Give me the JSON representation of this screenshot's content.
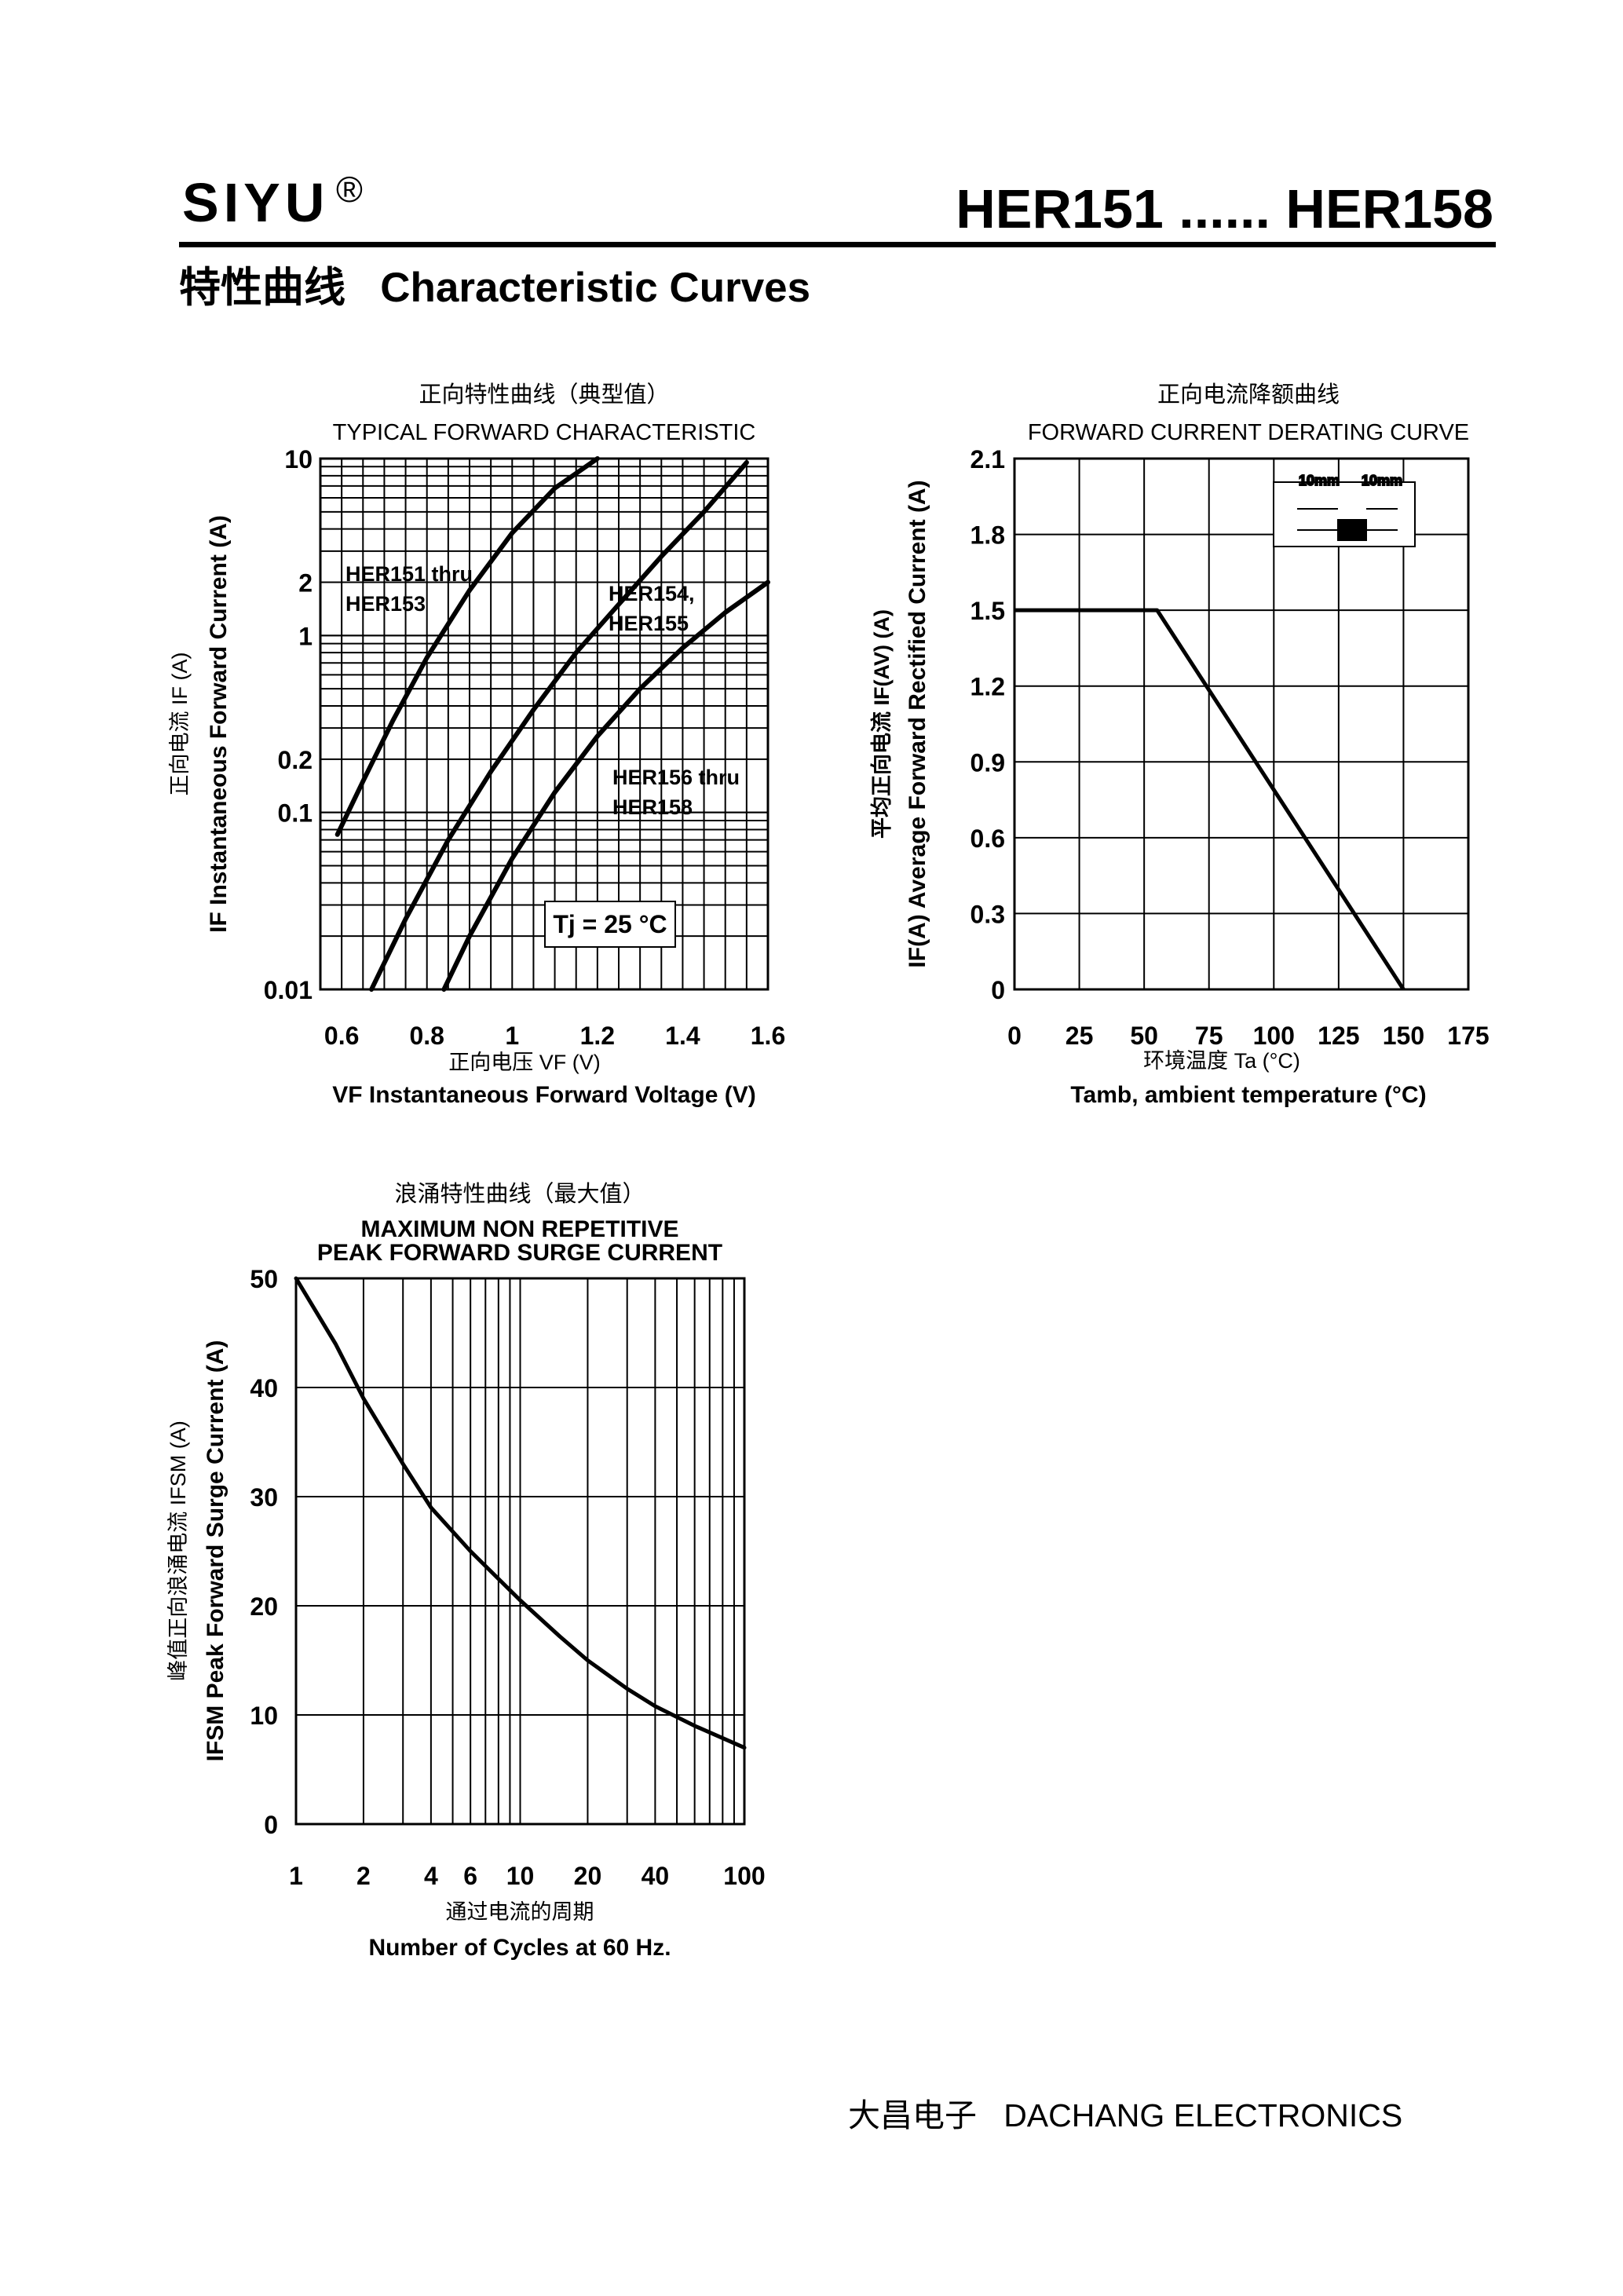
{
  "header": {
    "brand": "SIYU",
    "registered_mark": "®",
    "part_range": "HER151 ...... HER158",
    "section_cn": "特性曲线",
    "section_en": "Characteristic Curves"
  },
  "footer": {
    "company_cn": "大昌电子",
    "company_en": "DACHANG ELECTRONICS"
  },
  "chart_data": [
    {
      "type": "line",
      "title_cn": "正向特性曲线（典型值）",
      "title": "TYPICAL FORWARD CHARACTERISTIC",
      "xlabel_cn": "正向电压",
      "xlabel_cn_symbol": "VF (V)",
      "xlabel": "VF Instantaneous Forward Voltage (V)",
      "ylabel_cn": "正向电流",
      "ylabel_cn_symbol": "IF (A)",
      "ylabel": "IF Instantaneous Forward Current (A)",
      "xlim": [
        0.55,
        1.6
      ],
      "ylim": [
        0.01,
        10
      ],
      "yscale": "log",
      "x_ticks": [
        {
          "v": 0.6,
          "label": "0.6"
        },
        {
          "v": 0.8,
          "label": "0.8"
        },
        {
          "v": 1.0,
          "label": "1"
        },
        {
          "v": 1.2,
          "label": "1.2"
        },
        {
          "v": 1.4,
          "label": "1.4"
        },
        {
          "v": 1.6,
          "label": "1.6"
        }
      ],
      "y_ticks": [
        {
          "v": 10,
          "label": "10"
        },
        {
          "v": 2,
          "label": "2"
        },
        {
          "v": 1,
          "label": "1"
        },
        {
          "v": 0.2,
          "label": "0.2"
        },
        {
          "v": 0.1,
          "label": "0.1"
        },
        {
          "v": 0.01,
          "label": "0.01"
        }
      ],
      "grid": true,
      "annotation": "Tj = 25 °C",
      "series": [
        {
          "name": "HER151 thru HER153",
          "x": [
            0.59,
            0.65,
            0.72,
            0.8,
            0.9,
            1.0,
            1.1,
            1.2
          ],
          "y": [
            0.075,
            0.15,
            0.33,
            0.75,
            1.8,
            3.8,
            6.8,
            10
          ]
        },
        {
          "name": "HER154, HER155",
          "x": [
            0.67,
            0.75,
            0.85,
            0.95,
            1.05,
            1.15,
            1.25,
            1.35,
            1.45,
            1.55
          ],
          "y": [
            0.01,
            0.025,
            0.07,
            0.17,
            0.38,
            0.8,
            1.5,
            2.8,
            5.0,
            9.5
          ]
        },
        {
          "name": "HER156 thru HER158",
          "x": [
            0.84,
            0.9,
            1.0,
            1.1,
            1.2,
            1.3,
            1.4,
            1.5,
            1.6
          ],
          "y": [
            0.01,
            0.02,
            0.055,
            0.13,
            0.27,
            0.5,
            0.85,
            1.35,
            2.0
          ]
        }
      ]
    },
    {
      "type": "line",
      "title_cn": "正向电流降额曲线",
      "title": "FORWARD CURRENT DERATING CURVE",
      "xlabel_cn": "环境温度",
      "xlabel_cn_symbol": "Ta (°C)",
      "xlabel": "Tamb, ambient temperature (°C)",
      "ylabel_cn": "平均正向电流",
      "ylabel_cn_symbol": "IF(AV) (A)",
      "ylabel": "IF(A) Average Forward Rectified Current (A)",
      "xlim": [
        0,
        175
      ],
      "ylim": [
        0,
        2.1
      ],
      "x_ticks": [
        {
          "v": 0,
          "label": "0"
        },
        {
          "v": 25,
          "label": "25"
        },
        {
          "v": 50,
          "label": "50"
        },
        {
          "v": 75,
          "label": "75"
        },
        {
          "v": 100,
          "label": "100"
        },
        {
          "v": 125,
          "label": "125"
        },
        {
          "v": 150,
          "label": "150"
        },
        {
          "v": 175,
          "label": "175"
        }
      ],
      "y_ticks": [
        {
          "v": 2.1,
          "label": "2.1"
        },
        {
          "v": 1.8,
          "label": "1.8"
        },
        {
          "v": 1.5,
          "label": "1.5"
        },
        {
          "v": 1.2,
          "label": "1.2"
        },
        {
          "v": 0.9,
          "label": "0.9"
        },
        {
          "v": 0.6,
          "label": "0.6"
        },
        {
          "v": 0.3,
          "label": "0.3"
        },
        {
          "v": 0,
          "label": "0"
        }
      ],
      "grid": true,
      "inset_labels": [
        "10mm",
        "10mm"
      ],
      "series": [
        {
          "x": [
            0,
            55,
            150
          ],
          "y": [
            1.5,
            1.5,
            0
          ]
        }
      ]
    },
    {
      "type": "line",
      "title_cn": "浪涌特性曲线（最大值）",
      "title": "MAXIMUM NON REPETITIVE",
      "subtitle": "PEAK FORWARD SURGE CURRENT",
      "xlabel_cn": "通过电流的周期",
      "xlabel": "Number  of  Cycles at 60 Hz.",
      "ylabel_cn": "峰值正向浪涌电流",
      "ylabel_cn_symbol": "IFSM (A)",
      "ylabel": "IFSM Peak Forward Surge Current (A)",
      "xlim": [
        1,
        100
      ],
      "xscale": "log",
      "ylim": [
        0,
        50
      ],
      "x_ticks": [
        {
          "v": 1,
          "label": "1"
        },
        {
          "v": 2,
          "label": "2"
        },
        {
          "v": 4,
          "label": "4"
        },
        {
          "v": 6,
          "label": "6"
        },
        {
          "v": 10,
          "label": "10"
        },
        {
          "v": 20,
          "label": "20"
        },
        {
          "v": 40,
          "label": "40"
        },
        {
          "v": 100,
          "label": "100"
        }
      ],
      "y_ticks": [
        {
          "v": 50,
          "label": "50"
        },
        {
          "v": 40,
          "label": "40"
        },
        {
          "v": 30,
          "label": "30"
        },
        {
          "v": 20,
          "label": "20"
        },
        {
          "v": 10,
          "label": "10"
        },
        {
          "v": 0,
          "label": "0"
        }
      ],
      "grid": true,
      "series": [
        {
          "x": [
            1,
            1.5,
            2,
            3,
            4,
            6,
            10,
            15,
            20,
            30,
            40,
            60,
            100
          ],
          "y": [
            50,
            44,
            39,
            33,
            29,
            25,
            20.5,
            17.2,
            15,
            12.4,
            10.8,
            9,
            7
          ]
        }
      ]
    }
  ]
}
